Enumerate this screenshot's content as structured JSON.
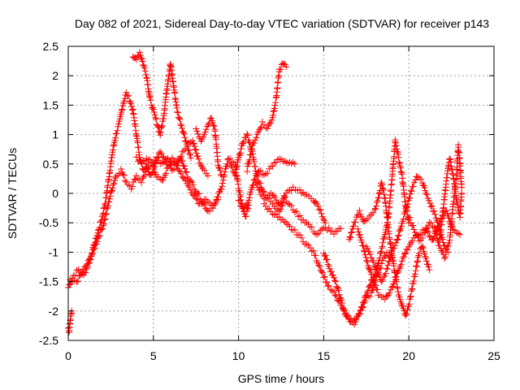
{
  "chart_data": {
    "type": "scatter",
    "title": "Day 082 of 2021, Sidereal Day-to-day VTEC variation (SDTVAR) for receiver p143",
    "xlabel": "GPS time / hours",
    "ylabel": "SDTVAR / TECUs",
    "xlim": [
      0,
      25
    ],
    "ylim": [
      -2.5,
      2.5
    ],
    "x_ticks": [
      0,
      5,
      10,
      15,
      20,
      25
    ],
    "y_ticks": [
      -2.5,
      -2,
      -1.5,
      -1,
      -0.5,
      0,
      0.5,
      1,
      1.5,
      2,
      2.5
    ],
    "x_tick_labels": [
      "0",
      "5",
      "10",
      "15",
      "20",
      "25"
    ],
    "y_tick_labels": [
      "-2.5",
      "-2",
      "-1.5",
      "-1",
      "-0.5",
      "0",
      "0.5",
      "1",
      "1.5",
      "2",
      "2.5"
    ],
    "grid": true,
    "marker": "+",
    "color": "#ff0000",
    "series": [
      {
        "name": "track-1",
        "points": [
          [
            0.0,
            -1.6
          ],
          [
            0.3,
            -1.4
          ],
          [
            0.6,
            -1.3
          ],
          [
            0.9,
            -1.4
          ],
          [
            1.2,
            -1.2
          ],
          [
            1.5,
            -0.9
          ],
          [
            1.8,
            -0.6
          ],
          [
            2.0,
            -0.4
          ],
          [
            2.2,
            -0.1
          ],
          [
            2.4,
            0.3
          ],
          [
            2.6,
            0.7
          ],
          [
            2.8,
            1.0
          ],
          [
            3.0,
            1.2
          ],
          [
            3.2,
            1.5
          ],
          [
            3.4,
            1.7
          ],
          [
            3.6,
            1.6
          ],
          [
            3.8,
            1.4
          ],
          [
            4.0,
            1.0
          ],
          [
            4.2,
            0.6
          ],
          [
            4.4,
            0.4
          ],
          [
            4.6,
            0.5
          ],
          [
            4.8,
            0.3
          ],
          [
            5.0,
            0.4
          ],
          [
            5.2,
            0.6
          ],
          [
            5.5,
            0.5
          ],
          [
            5.8,
            0.6
          ],
          [
            6.1,
            0.4
          ],
          [
            6.4,
            0.5
          ],
          [
            6.7,
            0.7
          ],
          [
            7.0,
            0.8
          ],
          [
            7.3,
            0.9
          ],
          [
            7.6,
            0.6
          ],
          [
            7.9,
            0.4
          ],
          [
            8.2,
            0.3
          ]
        ]
      },
      {
        "name": "track-2",
        "points": [
          [
            0.1,
            -1.5
          ],
          [
            0.5,
            -1.5
          ],
          [
            0.9,
            -1.3
          ],
          [
            1.3,
            -1.1
          ],
          [
            1.7,
            -0.8
          ],
          [
            2.1,
            -0.5
          ],
          [
            2.5,
            0.0
          ],
          [
            2.8,
            0.3
          ],
          [
            3.1,
            0.4
          ],
          [
            3.4,
            0.2
          ],
          [
            3.7,
            0.1
          ],
          [
            4.0,
            0.3
          ],
          [
            4.3,
            0.2
          ],
          [
            4.6,
            0.4
          ],
          [
            4.9,
            0.5
          ],
          [
            5.2,
            0.3
          ],
          [
            5.5,
            0.2
          ],
          [
            5.8,
            0.4
          ],
          [
            6.1,
            0.6
          ],
          [
            6.5,
            0.4
          ],
          [
            6.9,
            0.2
          ],
          [
            7.3,
            0.0
          ],
          [
            7.7,
            -0.2
          ],
          [
            8.1,
            -0.1
          ],
          [
            8.5,
            -0.2
          ],
          [
            8.8,
            -0.1
          ]
        ]
      },
      {
        "name": "track-3",
        "points": [
          [
            3.8,
            2.3
          ],
          [
            4.0,
            2.3
          ],
          [
            4.2,
            2.4
          ],
          [
            4.4,
            2.2
          ],
          [
            4.6,
            2.0
          ],
          [
            4.8,
            1.6
          ],
          [
            5.0,
            1.4
          ],
          [
            5.2,
            1.2
          ],
          [
            5.4,
            1.0
          ],
          [
            5.6,
            1.3
          ],
          [
            5.8,
            1.8
          ],
          [
            6.0,
            2.2
          ],
          [
            6.2,
            1.8
          ],
          [
            6.4,
            1.4
          ],
          [
            6.6,
            1.2
          ],
          [
            6.8,
            1.0
          ],
          [
            7.0,
            0.8
          ],
          [
            7.2,
            0.6
          ]
        ]
      },
      {
        "name": "track-4",
        "points": [
          [
            4.0,
            0.6
          ],
          [
            4.3,
            0.5
          ],
          [
            4.6,
            0.6
          ],
          [
            5.0,
            0.5
          ],
          [
            5.4,
            0.7
          ],
          [
            5.8,
            0.5
          ],
          [
            6.2,
            0.5
          ],
          [
            6.6,
            0.6
          ],
          [
            7.0,
            0.3
          ],
          [
            7.4,
            0.1
          ],
          [
            7.8,
            -0.1
          ],
          [
            8.2,
            -0.3
          ],
          [
            8.6,
            -0.2
          ],
          [
            9.0,
            0.1
          ],
          [
            9.4,
            0.6
          ],
          [
            9.8,
            0.5
          ],
          [
            10.0,
            0.1
          ],
          [
            10.2,
            -0.2
          ],
          [
            10.4,
            -0.4
          ],
          [
            10.6,
            -0.2
          ]
        ]
      },
      {
        "name": "track-5",
        "points": [
          [
            7.5,
            1.1
          ],
          [
            7.8,
            0.9
          ],
          [
            8.1,
            1.1
          ],
          [
            8.4,
            1.3
          ],
          [
            8.6,
            1.1
          ],
          [
            8.8,
            0.5
          ],
          [
            9.0,
            0.3
          ]
        ]
      },
      {
        "name": "track-6",
        "points": [
          [
            9.5,
            0.5
          ],
          [
            9.8,
            0.3
          ],
          [
            10.0,
            0.6
          ],
          [
            10.3,
            0.9
          ],
          [
            10.5,
            1.0
          ],
          [
            10.8,
            0.7
          ],
          [
            11.0,
            0.4
          ],
          [
            11.2,
            0.2
          ],
          [
            11.5,
            0.0
          ],
          [
            11.8,
            -0.1
          ],
          [
            12.1,
            -0.2
          ],
          [
            12.4,
            -0.3
          ],
          [
            12.7,
            -0.1
          ],
          [
            13.0,
            -0.2
          ],
          [
            13.3,
            -0.3
          ],
          [
            13.6,
            -0.4
          ],
          [
            14.0,
            -0.5
          ],
          [
            14.3,
            -0.6
          ],
          [
            14.6,
            -0.7
          ],
          [
            15.0,
            -0.6
          ],
          [
            15.3,
            -0.6
          ],
          [
            15.6,
            -0.7
          ],
          [
            16.0,
            -0.6
          ]
        ]
      },
      {
        "name": "track-7",
        "points": [
          [
            10.0,
            -0.1
          ],
          [
            10.3,
            -0.3
          ],
          [
            10.6,
            -0.1
          ],
          [
            10.9,
            0.2
          ],
          [
            11.2,
            0.4
          ],
          [
            11.5,
            0.3
          ],
          [
            11.8,
            0.4
          ],
          [
            12.1,
            0.5
          ],
          [
            12.4,
            0.6
          ],
          [
            12.7,
            0.55
          ],
          [
            13.0,
            0.5
          ],
          [
            13.3,
            0.5
          ]
        ]
      },
      {
        "name": "track-8",
        "points": [
          [
            10.5,
            0.4
          ],
          [
            10.8,
            0.8
          ],
          [
            11.1,
            1.0
          ],
          [
            11.4,
            1.2
          ],
          [
            11.7,
            1.1
          ],
          [
            12.0,
            1.3
          ],
          [
            12.2,
            1.6
          ],
          [
            12.4,
            2.1
          ],
          [
            12.6,
            2.2
          ],
          [
            12.8,
            2.15
          ]
        ]
      },
      {
        "name": "track-9",
        "points": [
          [
            11.0,
            0.2
          ],
          [
            11.3,
            0.0
          ],
          [
            11.6,
            -0.1
          ],
          [
            12.0,
            0.0
          ],
          [
            12.4,
            -0.2
          ],
          [
            12.8,
            0.0
          ],
          [
            13.2,
            0.1
          ],
          [
            13.6,
            0.05
          ],
          [
            14.0,
            -0.05
          ],
          [
            14.4,
            -0.1
          ],
          [
            14.8,
            -0.3
          ],
          [
            15.1,
            -0.5
          ]
        ]
      },
      {
        "name": "track-10",
        "points": [
          [
            11.5,
            -0.2
          ],
          [
            11.9,
            -0.3
          ],
          [
            12.3,
            -0.4
          ],
          [
            12.7,
            -0.5
          ],
          [
            13.1,
            -0.6
          ],
          [
            13.5,
            -0.7
          ],
          [
            13.8,
            -0.8
          ],
          [
            14.1,
            -0.9
          ],
          [
            14.4,
            -1.0
          ],
          [
            14.7,
            -1.2
          ],
          [
            15.0,
            -1.4
          ],
          [
            15.3,
            -1.6
          ],
          [
            15.6,
            -1.7
          ],
          [
            16.0,
            -1.9
          ],
          [
            16.4,
            -2.1
          ],
          [
            16.8,
            -2.2
          ],
          [
            17.2,
            -2.0
          ],
          [
            17.5,
            -1.8
          ],
          [
            17.8,
            -1.7
          ],
          [
            18.1,
            -1.4
          ],
          [
            18.4,
            -1.2
          ],
          [
            18.7,
            -1.0
          ],
          [
            19.0,
            -1.1
          ]
        ]
      },
      {
        "name": "track-11",
        "points": [
          [
            15.0,
            -1.0
          ],
          [
            15.4,
            -1.3
          ],
          [
            15.8,
            -1.6
          ],
          [
            16.2,
            -2.0
          ],
          [
            16.6,
            -2.2
          ],
          [
            17.0,
            -2.1
          ],
          [
            17.4,
            -1.8
          ],
          [
            17.8,
            -1.5
          ],
          [
            18.2,
            -1.2
          ],
          [
            18.5,
            -0.8
          ],
          [
            18.8,
            -0.4
          ],
          [
            19.0,
            0.2
          ],
          [
            19.2,
            0.9
          ],
          [
            19.4,
            0.6
          ],
          [
            19.6,
            0.3
          ],
          [
            19.8,
            -0.2
          ],
          [
            20.0,
            -0.5
          ]
        ]
      },
      {
        "name": "track-12",
        "points": [
          [
            16.5,
            -0.8
          ],
          [
            16.8,
            -0.5
          ],
          [
            17.1,
            -0.3
          ],
          [
            17.4,
            -0.5
          ],
          [
            17.7,
            -0.4
          ],
          [
            18.0,
            -0.3
          ],
          [
            18.2,
            -0.1
          ],
          [
            18.4,
            0.2
          ],
          [
            18.6,
            -0.1
          ],
          [
            18.8,
            -0.6
          ],
          [
            19.0,
            -1.0
          ],
          [
            19.2,
            -1.4
          ],
          [
            19.4,
            -1.7
          ],
          [
            19.6,
            -1.9
          ],
          [
            19.8,
            -2.1
          ],
          [
            20.0,
            -1.9
          ],
          [
            20.2,
            -1.6
          ],
          [
            20.4,
            -1.3
          ],
          [
            20.6,
            -1.0
          ],
          [
            20.8,
            -0.9
          ],
          [
            21.0,
            -1.1
          ],
          [
            21.2,
            -1.3
          ]
        ]
      },
      {
        "name": "track-13",
        "points": [
          [
            17.0,
            -0.6
          ],
          [
            17.4,
            -1.0
          ],
          [
            17.8,
            -1.4
          ],
          [
            18.2,
            -1.7
          ],
          [
            18.6,
            -1.8
          ],
          [
            19.0,
            -1.6
          ],
          [
            19.4,
            -1.3
          ],
          [
            19.8,
            -1.0
          ],
          [
            20.2,
            -0.8
          ],
          [
            20.6,
            -0.7
          ],
          [
            21.0,
            -0.6
          ],
          [
            21.4,
            -0.8
          ],
          [
            21.8,
            -0.5
          ],
          [
            22.2,
            -0.3
          ],
          [
            22.6,
            -0.6
          ],
          [
            23.0,
            -0.7
          ]
        ]
      },
      {
        "name": "track-14",
        "points": [
          [
            17.5,
            -0.9
          ],
          [
            17.8,
            -1.1
          ],
          [
            18.1,
            -1.3
          ],
          [
            18.4,
            -1.5
          ],
          [
            18.7,
            -1.3
          ],
          [
            19.0,
            -1.0
          ],
          [
            19.3,
            -0.8
          ],
          [
            19.6,
            -0.5
          ],
          [
            19.9,
            -0.2
          ],
          [
            20.2,
            0.1
          ],
          [
            20.5,
            0.3
          ],
          [
            20.8,
            0.2
          ],
          [
            21.0,
            0.0
          ],
          [
            21.3,
            -0.2
          ],
          [
            21.6,
            -0.4
          ],
          [
            21.9,
            -0.7
          ],
          [
            22.1,
            -0.9
          ],
          [
            22.3,
            -1.0
          ]
        ]
      },
      {
        "name": "track-15",
        "points": [
          [
            20.0,
            -0.4
          ],
          [
            20.3,
            -0.6
          ],
          [
            20.6,
            -0.8
          ],
          [
            20.9,
            -0.7
          ],
          [
            21.2,
            -0.5
          ],
          [
            21.5,
            -0.6
          ],
          [
            21.8,
            -0.9
          ],
          [
            22.1,
            -1.1
          ],
          [
            22.4,
            -0.8
          ],
          [
            22.6,
            -0.2
          ],
          [
            22.8,
            0.3
          ],
          [
            22.9,
            0.8
          ],
          [
            23.0,
            0.5
          ],
          [
            23.1,
            0.1
          ]
        ]
      },
      {
        "name": "track-16",
        "points": [
          [
            0.0,
            -2.3
          ],
          [
            0.05,
            -2.35
          ],
          [
            0.1,
            -2.2
          ],
          [
            0.15,
            -2.1
          ],
          [
            0.2,
            -2.0
          ]
        ]
      },
      {
        "name": "track-17",
        "points": [
          [
            21.8,
            -0.8
          ],
          [
            22.0,
            -0.3
          ],
          [
            22.2,
            0.2
          ],
          [
            22.4,
            0.6
          ],
          [
            22.6,
            0.3
          ],
          [
            22.8,
            -0.1
          ],
          [
            23.0,
            -0.4
          ],
          [
            23.1,
            0.0
          ]
        ]
      }
    ]
  }
}
